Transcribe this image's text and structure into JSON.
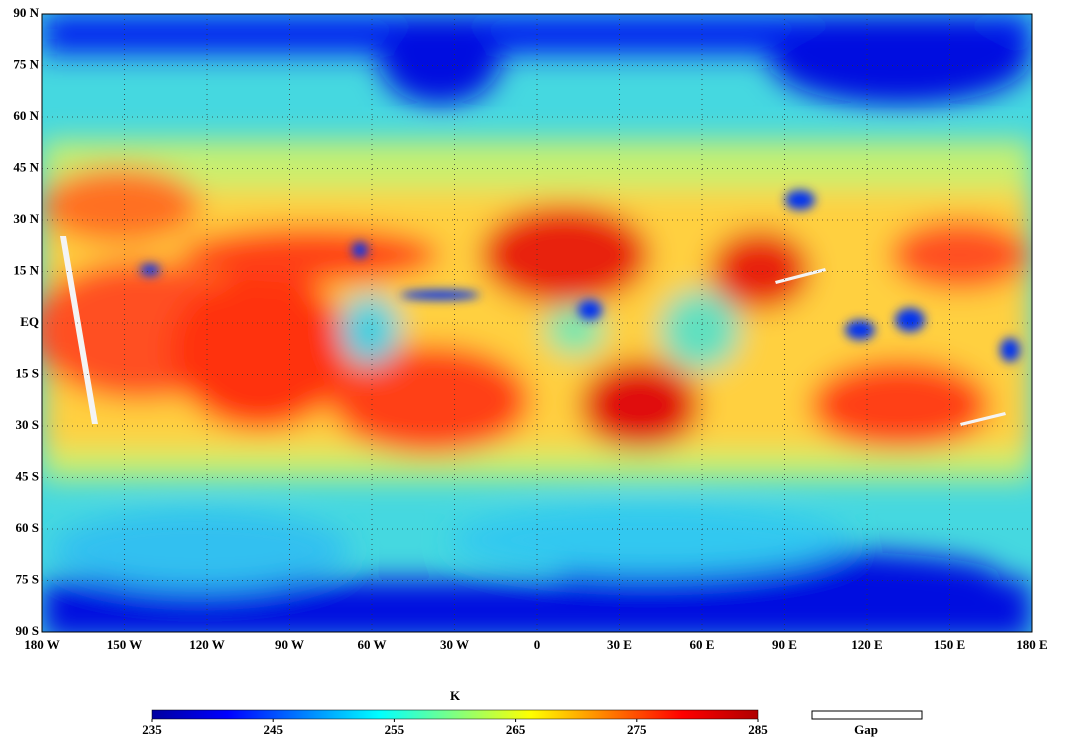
{
  "map": {
    "lat_labels": [
      "90 N",
      "75 N",
      "60 N",
      "45 N",
      "30 N",
      "15 N",
      "EQ",
      "15 S",
      "30 S",
      "45 S",
      "60 S",
      "75 S",
      "90 S"
    ],
    "lon_labels": [
      "180 W",
      "150 W",
      "120 W",
      "90 W",
      "60 W",
      "30 W",
      "0",
      "30 E",
      "60 E",
      "90 E",
      "120 E",
      "150 E",
      "180 E"
    ]
  },
  "colorbar": {
    "label": "K",
    "range": [
      235,
      285
    ],
    "ticks": [
      235,
      245,
      255,
      265,
      275,
      285
    ]
  },
  "legend": {
    "gap": "Gap"
  }
}
